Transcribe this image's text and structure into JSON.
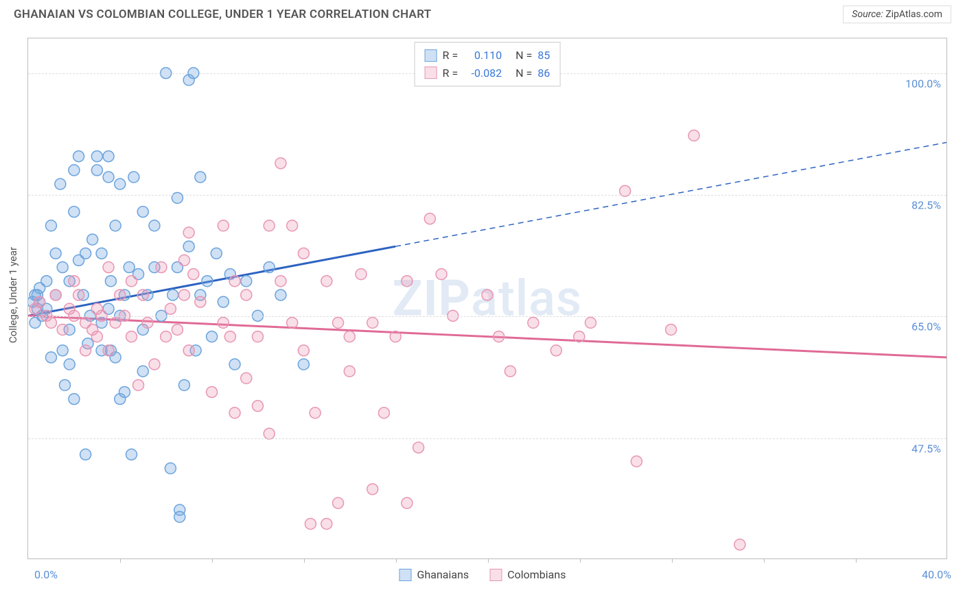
{
  "title": "GHANAIAN VS COLOMBIAN COLLEGE, UNDER 1 YEAR CORRELATION CHART",
  "source_label": "Source:",
  "source_value": "ZipAtlas.com",
  "watermark_bold": "ZIP",
  "watermark_light": "atlas",
  "chart": {
    "type": "scatter",
    "xlim": [
      0,
      40
    ],
    "ylim": [
      30,
      105
    ],
    "x_start_label": "0.0%",
    "x_end_label": "40.0%",
    "x_tick_positions": [
      4,
      8,
      12,
      16,
      20,
      24,
      28,
      32,
      36
    ],
    "y_gridlines": [
      47.5,
      65.0,
      82.5,
      100.0
    ],
    "y_tick_labels": [
      "47.5%",
      "65.0%",
      "82.5%",
      "100.0%"
    ],
    "y_axis_label": "College, Under 1 year",
    "background_color": "#ffffff",
    "grid_color": "#dddddd",
    "border_color": "#bbbbbb",
    "marker_radius": 8,
    "marker_stroke_width": 1.5,
    "trend_line_width": 3,
    "series": [
      {
        "name": "Ghanaians",
        "color_fill": "rgba(120,170,225,0.35)",
        "color_stroke": "#6aa3dc",
        "trend_color": "#2c62c1",
        "r_label": "R =",
        "r_value": "0.110",
        "n_label": "N =",
        "n_value": "85",
        "trend": {
          "x1": 0,
          "y1": 65,
          "x2": 40,
          "y2": 90,
          "solid_until_x": 16
        },
        "points": [
          [
            0.2,
            67
          ],
          [
            0.3,
            68
          ],
          [
            0.4,
            66
          ],
          [
            0.3,
            64
          ],
          [
            0.5,
            69
          ],
          [
            0.5,
            67
          ],
          [
            0.4,
            68
          ],
          [
            0.6,
            65
          ],
          [
            0.8,
            70
          ],
          [
            0.8,
            66
          ],
          [
            1.0,
            78
          ],
          [
            1.2,
            74
          ],
          [
            1.2,
            68
          ],
          [
            1.4,
            84
          ],
          [
            1.5,
            72
          ],
          [
            1.5,
            60
          ],
          [
            1.6,
            55
          ],
          [
            1.8,
            63
          ],
          [
            1.8,
            58
          ],
          [
            1.8,
            70
          ],
          [
            2.0,
            86
          ],
          [
            2.0,
            80
          ],
          [
            2.2,
            88
          ],
          [
            2.2,
            73
          ],
          [
            2.4,
            68
          ],
          [
            2.5,
            45
          ],
          [
            2.5,
            74
          ],
          [
            2.6,
            61
          ],
          [
            2.7,
            65
          ],
          [
            2.8,
            76
          ],
          [
            3.0,
            86
          ],
          [
            3.0,
            88
          ],
          [
            3.2,
            74
          ],
          [
            3.2,
            60
          ],
          [
            3.2,
            64
          ],
          [
            3.5,
            85
          ],
          [
            3.5,
            88
          ],
          [
            3.5,
            66
          ],
          [
            3.6,
            70
          ],
          [
            3.8,
            78
          ],
          [
            3.8,
            59
          ],
          [
            4.0,
            84
          ],
          [
            4.0,
            65
          ],
          [
            4.2,
            68
          ],
          [
            4.2,
            54
          ],
          [
            4.4,
            72
          ],
          [
            4.5,
            45
          ],
          [
            4.6,
            85
          ],
          [
            4.8,
            71
          ],
          [
            5.0,
            57
          ],
          [
            5.0,
            80
          ],
          [
            5.0,
            63
          ],
          [
            5.2,
            68
          ],
          [
            5.5,
            72
          ],
          [
            5.5,
            78
          ],
          [
            5.8,
            65
          ],
          [
            6.0,
            100
          ],
          [
            6.2,
            43
          ],
          [
            6.3,
            68
          ],
          [
            6.5,
            72
          ],
          [
            6.5,
            82
          ],
          [
            6.6,
            37
          ],
          [
            6.6,
            36
          ],
          [
            6.8,
            55
          ],
          [
            7.0,
            99
          ],
          [
            7.0,
            75
          ],
          [
            7.3,
            60
          ],
          [
            7.5,
            85
          ],
          [
            7.5,
            68
          ],
          [
            7.8,
            70
          ],
          [
            8.0,
            62
          ],
          [
            8.2,
            74
          ],
          [
            8.5,
            67
          ],
          [
            8.8,
            71
          ],
          [
            9.0,
            58
          ],
          [
            9.5,
            70
          ],
          [
            10.0,
            65
          ],
          [
            10.5,
            72
          ],
          [
            11.0,
            68
          ],
          [
            12.0,
            58
          ],
          [
            7.2,
            100
          ],
          [
            2.0,
            53
          ],
          [
            4.0,
            53
          ],
          [
            3.6,
            60
          ],
          [
            1.0,
            59
          ]
        ]
      },
      {
        "name": "Colombians",
        "color_fill": "rgba(235,150,180,0.30)",
        "color_stroke": "#e895b4",
        "trend_color": "#e06a95",
        "r_label": "R =",
        "r_value": "-0.082",
        "n_label": "N =",
        "n_value": "86",
        "trend": {
          "x1": 0,
          "y1": 65,
          "x2": 40,
          "y2": 59,
          "solid_until_x": 40
        },
        "points": [
          [
            0.3,
            66
          ],
          [
            0.5,
            67
          ],
          [
            0.8,
            65
          ],
          [
            1.0,
            64
          ],
          [
            1.2,
            68
          ],
          [
            1.5,
            63
          ],
          [
            1.8,
            66
          ],
          [
            2.0,
            65
          ],
          [
            2.0,
            70
          ],
          [
            2.2,
            68
          ],
          [
            2.5,
            64
          ],
          [
            2.5,
            60
          ],
          [
            2.8,
            63
          ],
          [
            3.0,
            66
          ],
          [
            3.0,
            62
          ],
          [
            3.2,
            65
          ],
          [
            3.5,
            72
          ],
          [
            3.5,
            60
          ],
          [
            3.8,
            64
          ],
          [
            4.0,
            68
          ],
          [
            4.2,
            65
          ],
          [
            4.5,
            62
          ],
          [
            4.5,
            70
          ],
          [
            4.8,
            55
          ],
          [
            5.0,
            68
          ],
          [
            5.2,
            64
          ],
          [
            5.5,
            58
          ],
          [
            5.8,
            72
          ],
          [
            6.0,
            62
          ],
          [
            6.2,
            66
          ],
          [
            6.5,
            63
          ],
          [
            6.8,
            68
          ],
          [
            6.8,
            73
          ],
          [
            7.0,
            60
          ],
          [
            7.2,
            71
          ],
          [
            7.5,
            67
          ],
          [
            8.0,
            54
          ],
          [
            8.5,
            64
          ],
          [
            8.8,
            62
          ],
          [
            9.0,
            70
          ],
          [
            9.0,
            51
          ],
          [
            9.5,
            56
          ],
          [
            9.5,
            68
          ],
          [
            10.0,
            62
          ],
          [
            10.0,
            52
          ],
          [
            10.5,
            48
          ],
          [
            10.5,
            78
          ],
          [
            11.0,
            70
          ],
          [
            11.0,
            87
          ],
          [
            11.5,
            64
          ],
          [
            11.5,
            78
          ],
          [
            12.0,
            60
          ],
          [
            12.0,
            74
          ],
          [
            12.3,
            35
          ],
          [
            12.5,
            51
          ],
          [
            13.0,
            35
          ],
          [
            13.0,
            70
          ],
          [
            13.5,
            64
          ],
          [
            14.0,
            62
          ],
          [
            14.0,
            57
          ],
          [
            14.5,
            71
          ],
          [
            15.0,
            40
          ],
          [
            15.0,
            64
          ],
          [
            15.5,
            51
          ],
          [
            16.0,
            62
          ],
          [
            16.5,
            70
          ],
          [
            17.0,
            46
          ],
          [
            17.5,
            79
          ],
          [
            18.0,
            71
          ],
          [
            18.5,
            65
          ],
          [
            20.0,
            68
          ],
          [
            20.5,
            62
          ],
          [
            21.0,
            57
          ],
          [
            22.0,
            64
          ],
          [
            23.0,
            60
          ],
          [
            24.0,
            62
          ],
          [
            24.5,
            64
          ],
          [
            26.0,
            83
          ],
          [
            26.5,
            44
          ],
          [
            28.0,
            63
          ],
          [
            29.0,
            91
          ],
          [
            31.0,
            32
          ],
          [
            13.5,
            38
          ],
          [
            16.5,
            38
          ],
          [
            8.5,
            78
          ],
          [
            7.0,
            77
          ]
        ]
      }
    ]
  }
}
